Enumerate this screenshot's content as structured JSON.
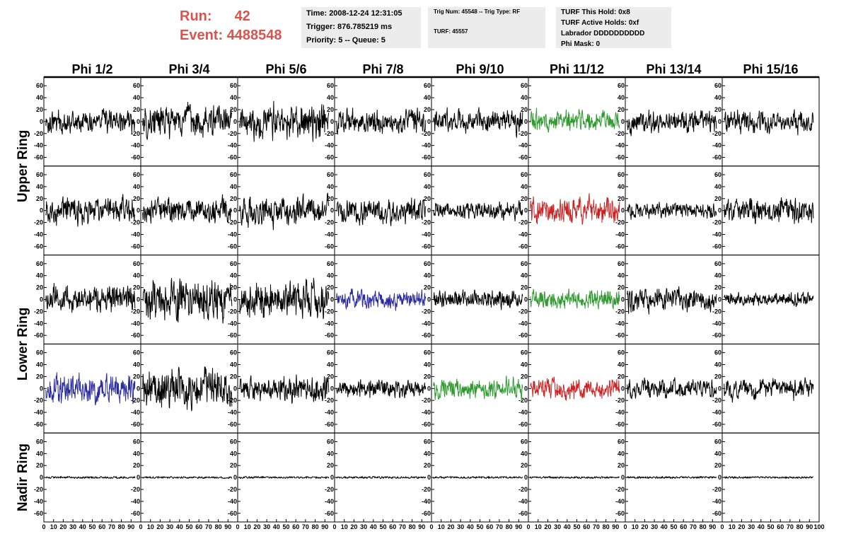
{
  "header": {
    "run_label": "Run:",
    "run_value": "42",
    "event_label": "Event:",
    "event_value": "4488548",
    "accent_color": "#d9534f"
  },
  "info_time": {
    "time": "Time: 2008-12-24 12:31:05",
    "trigger": "Trigger: 876.785219 ms",
    "priority": "Priority: 5 -- Queue: 5"
  },
  "info_trig": {
    "trig": "Trig Num: 45548 -- Trig Type: RF",
    "turf": "TURF: 45557"
  },
  "info_turf": {
    "hold": "TURF This Hold: 0x8",
    "active": "TURF Active Holds: 0xf",
    "labrador": "Labrador DDDDDDDDDD",
    "phimask": "Phi Mask: 0"
  },
  "chart_data": {
    "type": "line",
    "columns": [
      "Phi 1/2",
      "Phi 3/4",
      "Phi 5/6",
      "Phi 7/8",
      "Phi 9/10",
      "Phi 11/12",
      "Phi 13/14",
      "Phi 15/16"
    ],
    "ring_labels": [
      {
        "text": "Upper Ring",
        "rows": [
          0,
          1
        ]
      },
      {
        "text": "Lower Ring",
        "rows": [
          2,
          3
        ]
      },
      {
        "text": "Nadir Ring",
        "rows": [
          4,
          4
        ]
      }
    ],
    "ylim": [
      -65,
      65
    ],
    "xlim": [
      0,
      100
    ],
    "yticks": [
      "60",
      "40",
      "20",
      "0",
      "-20",
      "-40",
      "-60"
    ],
    "ytick_values": [
      60,
      40,
      20,
      0,
      -20,
      -40,
      -60
    ],
    "xticks": [
      "0",
      "10",
      "20",
      "30",
      "40",
      "50",
      "60",
      "70",
      "80",
      "90",
      "100"
    ],
    "xtick_values": [
      0,
      10,
      20,
      30,
      40,
      50,
      60,
      70,
      80,
      90,
      100
    ],
    "colors": {
      "black": "#000000",
      "green": "#2f9a2f",
      "red": "#cc2222",
      "blue": "#2a2aa0"
    },
    "traces": [
      [
        {
          "amp": 32,
          "color": "black"
        },
        {
          "amp": 45,
          "color": "black"
        },
        {
          "amp": 48,
          "color": "black"
        },
        {
          "amp": 35,
          "color": "black"
        },
        {
          "amp": 33,
          "color": "black"
        },
        {
          "amp": 30,
          "color": "green"
        },
        {
          "amp": 33,
          "color": "black"
        },
        {
          "amp": 32,
          "color": "black"
        }
      ],
      [
        {
          "amp": 38,
          "color": "black"
        },
        {
          "amp": 35,
          "color": "black"
        },
        {
          "amp": 40,
          "color": "black"
        },
        {
          "amp": 34,
          "color": "black"
        },
        {
          "amp": 26,
          "color": "black"
        },
        {
          "amp": 38,
          "color": "red"
        },
        {
          "amp": 22,
          "color": "black"
        },
        {
          "amp": 36,
          "color": "black"
        }
      ],
      [
        {
          "amp": 38,
          "color": "black"
        },
        {
          "amp": 55,
          "color": "black"
        },
        {
          "amp": 55,
          "color": "black"
        },
        {
          "amp": 25,
          "color": "blue"
        },
        {
          "amp": 25,
          "color": "black"
        },
        {
          "amp": 28,
          "color": "green"
        },
        {
          "amp": 34,
          "color": "black"
        },
        {
          "amp": 20,
          "color": "black"
        }
      ],
      [
        {
          "amp": 40,
          "color": "blue"
        },
        {
          "amp": 60,
          "color": "black"
        },
        {
          "amp": 38,
          "color": "black"
        },
        {
          "amp": 25,
          "color": "black"
        },
        {
          "amp": 28,
          "color": "green"
        },
        {
          "amp": 30,
          "color": "red"
        },
        {
          "amp": 28,
          "color": "black"
        },
        {
          "amp": 30,
          "color": "black"
        }
      ],
      [
        {
          "amp": 2,
          "color": "black"
        },
        {
          "amp": 2,
          "color": "black"
        },
        {
          "amp": 2,
          "color": "black"
        },
        {
          "amp": 2,
          "color": "black"
        },
        {
          "amp": 2,
          "color": "black"
        },
        {
          "amp": 2,
          "color": "black"
        },
        {
          "amp": 2,
          "color": "black"
        },
        {
          "amp": 2,
          "color": "black"
        }
      ]
    ]
  }
}
